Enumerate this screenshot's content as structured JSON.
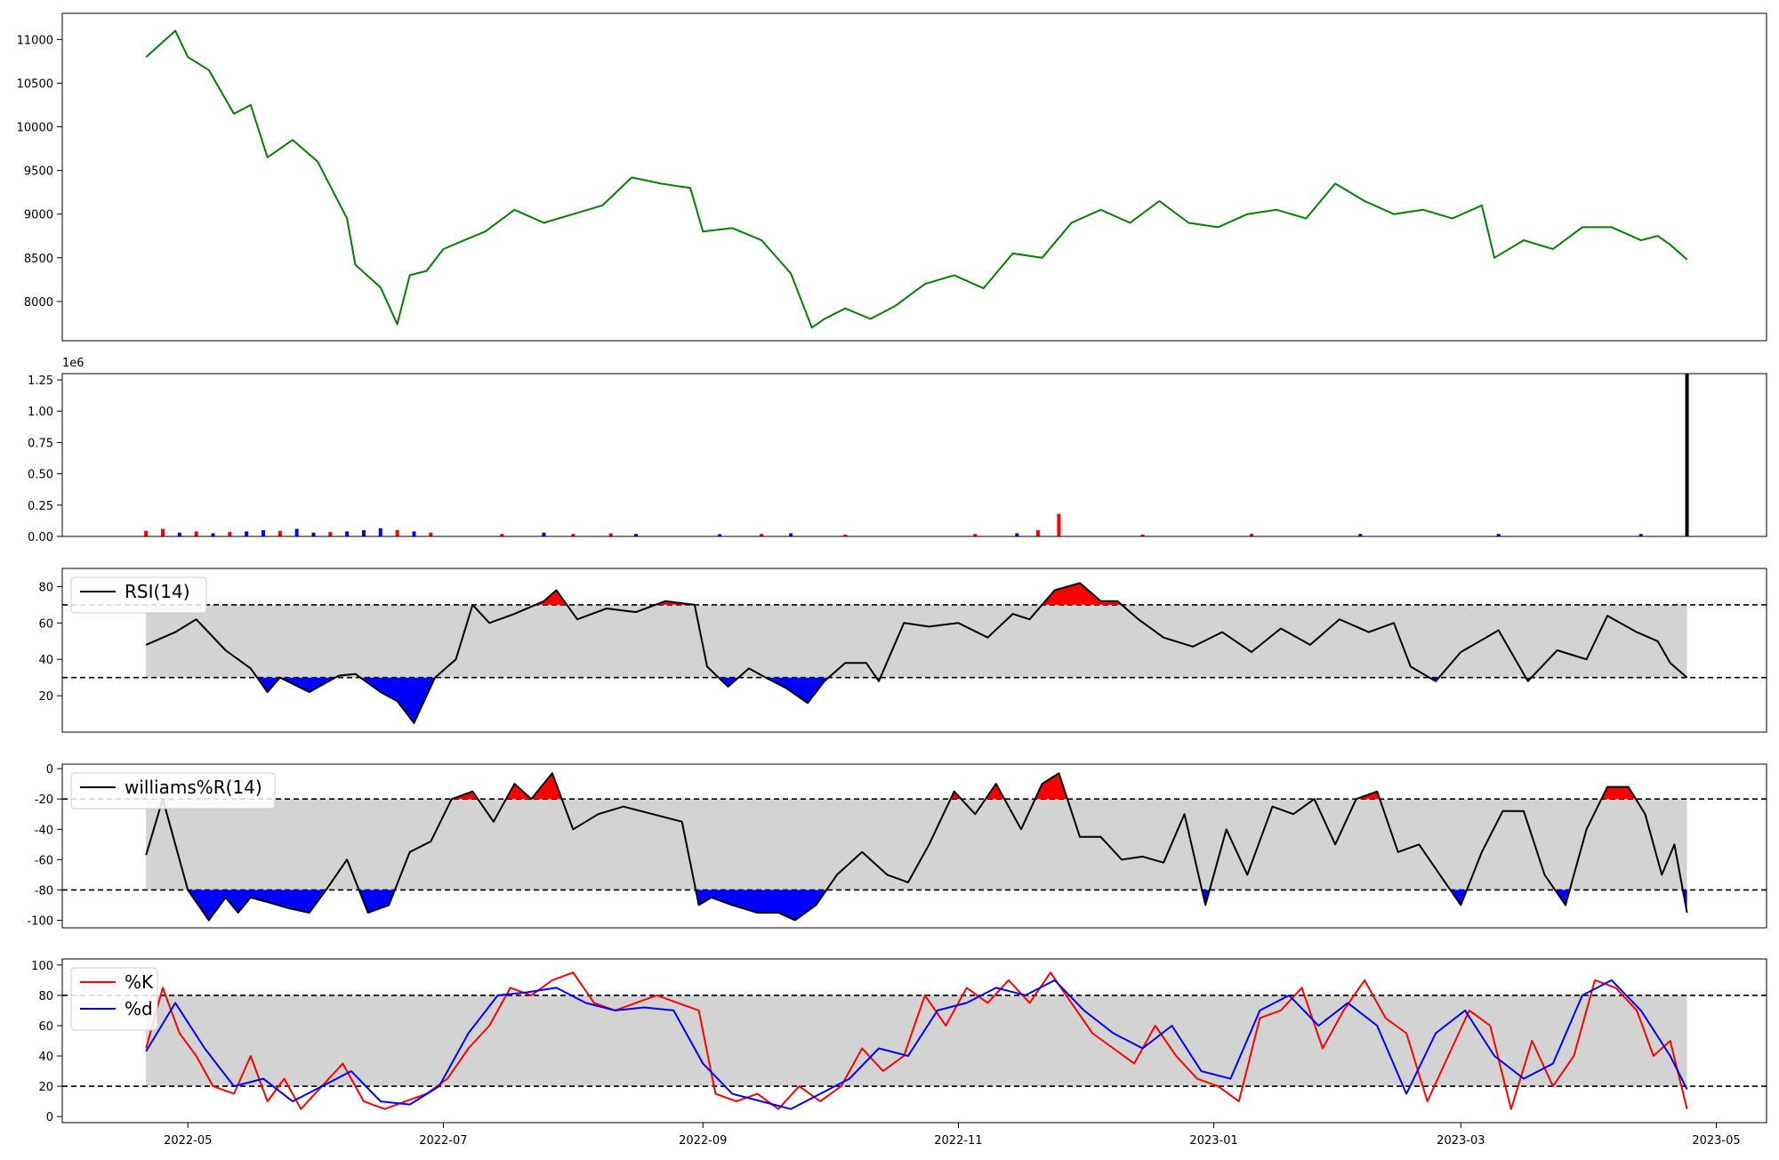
{
  "chart_data": [
    {
      "id": "price",
      "type": "line",
      "title": "",
      "series": [
        {
          "color": "#008000",
          "x": [
            "2022-04-21",
            "2022-04-28",
            "2022-05-01",
            "2022-05-06",
            "2022-05-12",
            "2022-05-16",
            "2022-05-20",
            "2022-05-26",
            "2022-06-01",
            "2022-06-08",
            "2022-06-10",
            "2022-06-16",
            "2022-06-20",
            "2022-06-23",
            "2022-06-27",
            "2022-07-01",
            "2022-07-06",
            "2022-07-11",
            "2022-07-18",
            "2022-07-25",
            "2022-08-01",
            "2022-08-08",
            "2022-08-15",
            "2022-08-22",
            "2022-08-29",
            "2022-09-01",
            "2022-09-08",
            "2022-09-15",
            "2022-09-22",
            "2022-09-27",
            "2022-09-30",
            "2022-10-05",
            "2022-10-11",
            "2022-10-17",
            "2022-10-24",
            "2022-10-31",
            "2022-11-07",
            "2022-11-14",
            "2022-11-21",
            "2022-11-28",
            "2022-12-05",
            "2022-12-12",
            "2022-12-19",
            "2022-12-26",
            "2023-01-02",
            "2023-01-09",
            "2023-01-16",
            "2023-01-23",
            "2023-01-30",
            "2023-02-06",
            "2023-02-13",
            "2023-02-20",
            "2023-02-27",
            "2023-03-06",
            "2023-03-09",
            "2023-03-16",
            "2023-03-23",
            "2023-03-30",
            "2023-04-06",
            "2023-04-13",
            "2023-04-17",
            "2023-04-20",
            "2023-04-24"
          ],
          "y": [
            10800,
            11100,
            10800,
            10650,
            10150,
            10250,
            9650,
            9850,
            9600,
            8950,
            8420,
            8160,
            7740,
            8300,
            8350,
            8600,
            8700,
            8800,
            9050,
            8900,
            9000,
            9100,
            9420,
            9350,
            9300,
            8800,
            8840,
            8700,
            8320,
            7700,
            7800,
            7920,
            7800,
            7950,
            8200,
            8300,
            8150,
            8550,
            8500,
            8900,
            9050,
            8900,
            9150,
            8900,
            8850,
            9000,
            9050,
            8950,
            9350,
            9150,
            9000,
            9050,
            8950,
            9100,
            8500,
            8700,
            8600,
            8850,
            8850,
            8700,
            8750,
            8650,
            8480
          ]
        }
      ],
      "ylim": [
        7550,
        11300
      ],
      "yticks": [
        8000,
        8500,
        9000,
        9500,
        10000,
        10500,
        11000
      ]
    },
    {
      "id": "volume",
      "type": "bar",
      "title": "",
      "offset_label": "1e6",
      "ylim": [
        0,
        1.3
      ],
      "yticks": [
        0.0,
        0.25,
        0.5,
        0.75,
        1.0,
        1.25
      ],
      "ytick_labels": [
        "0.00",
        "0.25",
        "0.50",
        "0.75",
        "1.00",
        "1.25"
      ],
      "x": [
        "2022-04-21",
        "2022-04-25",
        "2022-04-29",
        "2022-05-03",
        "2022-05-07",
        "2022-05-11",
        "2022-05-15",
        "2022-05-19",
        "2022-05-23",
        "2022-05-27",
        "2022-05-31",
        "2022-06-04",
        "2022-06-08",
        "2022-06-12",
        "2022-06-16",
        "2022-06-20",
        "2022-06-24",
        "2022-06-28",
        "2022-07-15",
        "2022-07-25",
        "2022-08-01",
        "2022-08-10",
        "2022-08-16",
        "2022-09-05",
        "2022-09-15",
        "2022-09-22",
        "2022-10-05",
        "2022-11-05",
        "2022-11-15",
        "2022-11-20",
        "2022-11-25",
        "2022-12-15",
        "2023-01-10",
        "2023-02-05",
        "2023-03-10",
        "2023-04-13",
        "2023-04-24"
      ],
      "values": [
        0.045,
        0.06,
        0.03,
        0.04,
        0.025,
        0.035,
        0.04,
        0.05,
        0.045,
        0.06,
        0.03,
        0.035,
        0.04,
        0.05,
        0.065,
        0.05,
        0.04,
        0.03,
        0.02,
        0.03,
        0.02,
        0.025,
        0.02,
        0.018,
        0.02,
        0.025,
        0.015,
        0.02,
        0.025,
        0.05,
        0.18,
        0.015,
        0.02,
        0.02,
        0.02,
        0.02,
        1.3
      ],
      "colors": [
        "#ff0000",
        "#ff0000",
        "#0000ff",
        "#ff0000",
        "#0000ff",
        "#ff0000",
        "#0000ff",
        "#0000ff",
        "#ff0000",
        "#0000ff",
        "#0000ff",
        "#ff0000",
        "#0000ff",
        "#0000ff",
        "#0000ff",
        "#ff0000",
        "#0000ff",
        "#ff0000",
        "#ff0000",
        "#0000ff",
        "#ff0000",
        "#ff0000",
        "#0000ff",
        "#0000ff",
        "#ff0000",
        "#0000ff",
        "#ff0000",
        "#ff0000",
        "#0000ff",
        "#ff0000",
        "#ff0000",
        "#ff0000",
        "#ff0000",
        "#0000ff",
        "#0000ff",
        "#0000ff",
        "#000000"
      ]
    },
    {
      "id": "rsi",
      "type": "line",
      "title": "",
      "legend": "RSI(14)",
      "legend_position": "upper left",
      "ylim": [
        0,
        90
      ],
      "yticks": [
        20,
        40,
        60,
        80
      ],
      "bands": [
        30,
        70
      ],
      "series": [
        {
          "name": "RSI(14)",
          "color": "#000000",
          "x": [
            "2022-04-21",
            "2022-04-28",
            "2022-05-03",
            "2022-05-10",
            "2022-05-16",
            "2022-05-20",
            "2022-05-23",
            "2022-05-30",
            "2022-06-06",
            "2022-06-10",
            "2022-06-16",
            "2022-06-20",
            "2022-06-24",
            "2022-06-29",
            "2022-07-04",
            "2022-07-08",
            "2022-07-12",
            "2022-07-18",
            "2022-07-25",
            "2022-07-28",
            "2022-08-02",
            "2022-08-09",
            "2022-08-16",
            "2022-08-23",
            "2022-08-30",
            "2022-09-02",
            "2022-09-07",
            "2022-09-12",
            "2022-09-16",
            "2022-09-21",
            "2022-09-26",
            "2022-09-30",
            "2022-10-05",
            "2022-10-10",
            "2022-10-13",
            "2022-10-19",
            "2022-10-25",
            "2022-11-01",
            "2022-11-08",
            "2022-11-14",
            "2022-11-18",
            "2022-11-24",
            "2022-11-30",
            "2022-12-05",
            "2022-12-09",
            "2022-12-14",
            "2022-12-20",
            "2022-12-27",
            "2023-01-03",
            "2023-01-10",
            "2023-01-17",
            "2023-01-24",
            "2023-01-31",
            "2023-02-07",
            "2023-02-13",
            "2023-02-17",
            "2023-02-23",
            "2023-03-01",
            "2023-03-07",
            "2023-03-10",
            "2023-03-17",
            "2023-03-24",
            "2023-03-31",
            "2023-04-05",
            "2023-04-12",
            "2023-04-17",
            "2023-04-20",
            "2023-04-24"
          ],
          "y": [
            48,
            55,
            62,
            45,
            35,
            22,
            30,
            22,
            31,
            32,
            22,
            17,
            5,
            30,
            40,
            70,
            60,
            65,
            72,
            78,
            62,
            68,
            66,
            72,
            70,
            36,
            25,
            35,
            30,
            24,
            16,
            28,
            38,
            38,
            28,
            60,
            58,
            60,
            52,
            65,
            62,
            78,
            82,
            72,
            72,
            62,
            52,
            47,
            55,
            44,
            57,
            48,
            62,
            55,
            60,
            36,
            28,
            44,
            52,
            56,
            28,
            45,
            40,
            64,
            55,
            50,
            38,
            30
          ]
        }
      ]
    },
    {
      "id": "williams",
      "type": "line",
      "title": "",
      "legend": "williams%R(14)",
      "legend_position": "upper left",
      "ylim": [
        -105,
        3
      ],
      "yticks": [
        -100,
        -80,
        -60,
        -40,
        -20,
        0
      ],
      "bands": [
        -80,
        -20
      ],
      "series": [
        {
          "name": "williams%R(14)",
          "color": "#000000",
          "x": [
            "2022-04-21",
            "2022-04-25",
            "2022-04-28",
            "2022-05-01",
            "2022-05-06",
            "2022-05-10",
            "2022-05-13",
            "2022-05-16",
            "2022-05-20",
            "2022-05-25",
            "2022-05-30",
            "2022-06-03",
            "2022-06-08",
            "2022-06-13",
            "2022-06-18",
            "2022-06-23",
            "2022-06-28",
            "2022-07-03",
            "2022-07-08",
            "2022-07-13",
            "2022-07-18",
            "2022-07-22",
            "2022-07-27",
            "2022-08-01",
            "2022-08-07",
            "2022-08-13",
            "2022-08-20",
            "2022-08-27",
            "2022-08-31",
            "2022-09-03",
            "2022-09-08",
            "2022-09-14",
            "2022-09-19",
            "2022-09-23",
            "2022-09-28",
            "2022-10-03",
            "2022-10-09",
            "2022-10-15",
            "2022-10-20",
            "2022-10-25",
            "2022-10-31",
            "2022-11-05",
            "2022-11-10",
            "2022-11-16",
            "2022-11-21",
            "2022-11-25",
            "2022-11-30",
            "2022-12-05",
            "2022-12-10",
            "2022-12-15",
            "2022-12-20",
            "2022-12-25",
            "2022-12-30",
            "2023-01-04",
            "2023-01-09",
            "2023-01-15",
            "2023-01-20",
            "2023-01-25",
            "2023-01-30",
            "2023-02-04",
            "2023-02-09",
            "2023-02-14",
            "2023-02-19",
            "2023-02-24",
            "2023-03-01",
            "2023-03-06",
            "2023-03-11",
            "2023-03-16",
            "2023-03-21",
            "2023-03-26",
            "2023-03-31",
            "2023-04-05",
            "2023-04-10",
            "2023-04-14",
            "2023-04-18",
            "2023-04-21",
            "2023-04-24"
          ],
          "y": [
            -57,
            -20,
            -50,
            -80,
            -100,
            -85,
            -95,
            -85,
            -88,
            -92,
            -95,
            -80,
            -60,
            -95,
            -90,
            -55,
            -48,
            -20,
            -15,
            -35,
            -10,
            -20,
            -3,
            -40,
            -30,
            -25,
            -30,
            -35,
            -90,
            -85,
            -90,
            -95,
            -95,
            -100,
            -90,
            -70,
            -55,
            -70,
            -75,
            -50,
            -15,
            -30,
            -10,
            -40,
            -10,
            -3,
            -45,
            -45,
            -60,
            -58,
            -62,
            -30,
            -90,
            -40,
            -70,
            -25,
            -30,
            -20,
            -50,
            -20,
            -15,
            -55,
            -50,
            -70,
            -90,
            -55,
            -28,
            -28,
            -70,
            -90,
            -40,
            -12,
            -12,
            -30,
            -70,
            -50,
            -95
          ]
        }
      ]
    },
    {
      "id": "stochastic",
      "type": "line",
      "title": "",
      "legend_position": "upper left",
      "ylim": [
        -4,
        104
      ],
      "yticks": [
        0,
        20,
        40,
        60,
        80,
        100
      ],
      "bands": [
        20,
        80
      ],
      "series": [
        {
          "name": "%K",
          "color": "#ff0000",
          "x": [
            "2022-04-21",
            "2022-04-25",
            "2022-04-29",
            "2022-05-03",
            "2022-05-07",
            "2022-05-12",
            "2022-05-16",
            "2022-05-20",
            "2022-05-24",
            "2022-05-28",
            "2022-06-02",
            "2022-06-07",
            "2022-06-12",
            "2022-06-17",
            "2022-06-22",
            "2022-06-27",
            "2022-07-02",
            "2022-07-07",
            "2022-07-12",
            "2022-07-17",
            "2022-07-22",
            "2022-07-27",
            "2022-08-01",
            "2022-08-06",
            "2022-08-11",
            "2022-08-16",
            "2022-08-21",
            "2022-08-26",
            "2022-08-31",
            "2022-09-04",
            "2022-09-09",
            "2022-09-14",
            "2022-09-19",
            "2022-09-24",
            "2022-09-29",
            "2022-10-04",
            "2022-10-09",
            "2022-10-14",
            "2022-10-19",
            "2022-10-24",
            "2022-10-29",
            "2022-11-03",
            "2022-11-08",
            "2022-11-13",
            "2022-11-18",
            "2022-11-23",
            "2022-11-28",
            "2022-12-03",
            "2022-12-08",
            "2022-12-13",
            "2022-12-18",
            "2022-12-23",
            "2022-12-28",
            "2023-01-02",
            "2023-01-07",
            "2023-01-12",
            "2023-01-17",
            "2023-01-22",
            "2023-01-27",
            "2023-02-01",
            "2023-02-06",
            "2023-02-11",
            "2023-02-16",
            "2023-02-21",
            "2023-02-26",
            "2023-03-03",
            "2023-03-08",
            "2023-03-13",
            "2023-03-18",
            "2023-03-23",
            "2023-03-28",
            "2023-04-02",
            "2023-04-07",
            "2023-04-12",
            "2023-04-16",
            "2023-04-20",
            "2023-04-24"
          ],
          "y": [
            45,
            85,
            55,
            40,
            20,
            15,
            40,
            10,
            25,
            5,
            20,
            35,
            10,
            5,
            10,
            15,
            25,
            45,
            60,
            85,
            80,
            90,
            95,
            75,
            70,
            75,
            80,
            75,
            70,
            15,
            10,
            15,
            5,
            20,
            10,
            20,
            45,
            30,
            40,
            80,
            60,
            85,
            75,
            90,
            75,
            95,
            75,
            55,
            45,
            35,
            60,
            40,
            25,
            20,
            10,
            65,
            70,
            85,
            45,
            70,
            90,
            65,
            55,
            10,
            40,
            70,
            60,
            5,
            50,
            20,
            40,
            90,
            85,
            70,
            40,
            50,
            5
          ]
        },
        {
          "name": "%d",
          "color": "#0000ff",
          "x": [
            "2022-04-21",
            "2022-04-28",
            "2022-05-05",
            "2022-05-12",
            "2022-05-19",
            "2022-05-26",
            "2022-06-02",
            "2022-06-09",
            "2022-06-16",
            "2022-06-23",
            "2022-06-30",
            "2022-07-07",
            "2022-07-14",
            "2022-07-21",
            "2022-07-28",
            "2022-08-04",
            "2022-08-11",
            "2022-08-18",
            "2022-08-25",
            "2022-09-01",
            "2022-09-08",
            "2022-09-15",
            "2022-09-22",
            "2022-09-29",
            "2022-10-06",
            "2022-10-13",
            "2022-10-20",
            "2022-10-27",
            "2022-11-03",
            "2022-11-10",
            "2022-11-17",
            "2022-11-24",
            "2022-12-01",
            "2022-12-08",
            "2022-12-15",
            "2022-12-22",
            "2022-12-29",
            "2023-01-05",
            "2023-01-12",
            "2023-01-19",
            "2023-01-26",
            "2023-02-02",
            "2023-02-09",
            "2023-02-16",
            "2023-02-23",
            "2023-03-02",
            "2023-03-09",
            "2023-03-16",
            "2023-03-23",
            "2023-03-30",
            "2023-04-06",
            "2023-04-13",
            "2023-04-20",
            "2023-04-24"
          ],
          "y": [
            43,
            75,
            45,
            20,
            25,
            10,
            20,
            30,
            10,
            8,
            20,
            55,
            80,
            82,
            85,
            75,
            70,
            72,
            70,
            35,
            15,
            10,
            5,
            15,
            25,
            45,
            40,
            70,
            75,
            85,
            80,
            90,
            70,
            55,
            45,
            60,
            30,
            25,
            70,
            80,
            60,
            75,
            60,
            15,
            55,
            70,
            40,
            25,
            35,
            80,
            90,
            70,
            40,
            18
          ]
        }
      ]
    }
  ],
  "shared_x": {
    "xlim": [
      "2022-04-01",
      "2023-05-13"
    ],
    "xticks": [
      "2022-05-01",
      "2022-07-01",
      "2022-09-01",
      "2022-11-01",
      "2023-01-01",
      "2023-03-01",
      "2023-05-01"
    ],
    "xtick_labels": [
      "2022-05",
      "2022-07",
      "2022-09",
      "2022-11",
      "2023-01",
      "2023-03",
      "2023-05"
    ]
  }
}
